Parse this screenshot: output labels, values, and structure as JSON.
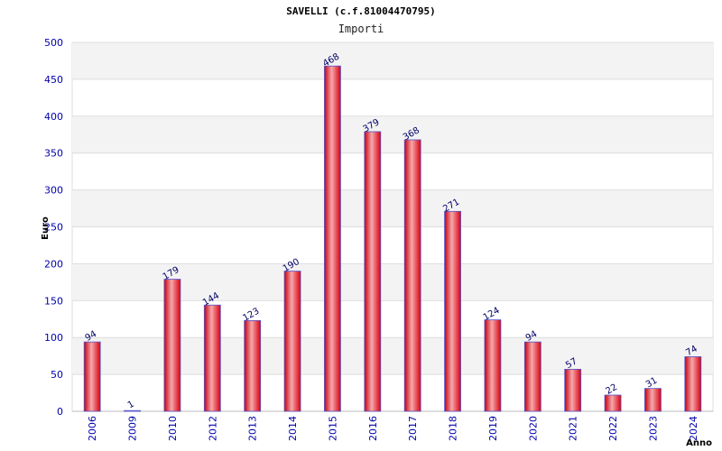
{
  "title": "SAVELLI (c.f.81004470795)",
  "subtitle": "Importi",
  "colors": {
    "bar": "#e8141e",
    "bar_highlight": "#f6a8ab",
    "bar_edge": "#5555cc",
    "band": "#f3f3f3",
    "tick_text": "#0000aa"
  },
  "chart_data": {
    "type": "bar",
    "title": "SAVELLI (c.f.81004470795)",
    "subtitle": "Importi",
    "xlabel": "Anno",
    "ylabel": "Euro",
    "categories": [
      "2006",
      "2009",
      "2010",
      "2012",
      "2013",
      "2014",
      "2015",
      "2016",
      "2017",
      "2018",
      "2019",
      "2020",
      "2021",
      "2022",
      "2023",
      "2024"
    ],
    "values": [
      94,
      1,
      179,
      144,
      123,
      190,
      468,
      379,
      368,
      271,
      124,
      94,
      57,
      22,
      31,
      74
    ],
    "ylim": [
      0,
      500
    ],
    "yticks": [
      0,
      50,
      100,
      150,
      200,
      250,
      300,
      350,
      400,
      450,
      500
    ],
    "grid": true
  }
}
